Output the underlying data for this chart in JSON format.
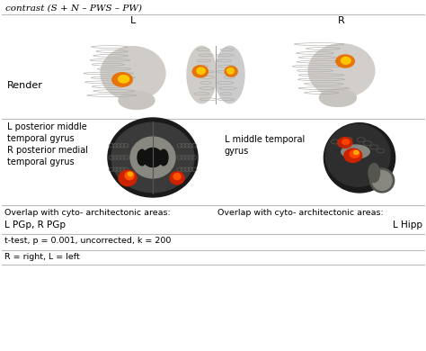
{
  "title": "contrast (S + N – PWS – PW)",
  "row1_label": "Render",
  "row1_top_left": "L",
  "row1_top_right": "R",
  "row2_left_label1": "L posterior middle",
  "row2_left_label2": "temporal gyrus",
  "row2_left_label3": "R posterior medial",
  "row2_left_label4": "temporal gyrus",
  "row2_right_label1": "L middle temporal",
  "row2_right_label2": "gyrus",
  "overlap_left_title": "Overlap with cyto- architectonic areas:",
  "overlap_left_value": "L PGp, R PGp",
  "overlap_right_title": "Overlap with cyto- architectonic areas:",
  "overlap_right_value": "L Hipp",
  "footer1": "t-test, p = 0.001, uncorrected, k = 200",
  "footer2": "R = right, L = left",
  "bg_color": "#ffffff",
  "text_color": "#000000",
  "divider_color": "#bbbbbb"
}
